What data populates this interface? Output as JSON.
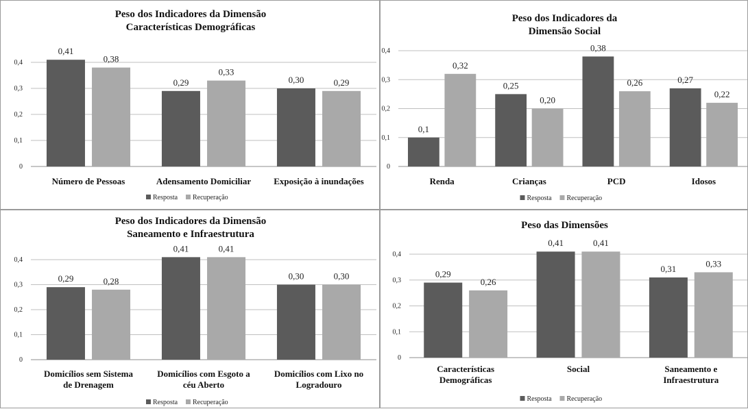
{
  "colors": {
    "resposta": "#5b5b5b",
    "recuperacao": "#a9a9a9"
  },
  "chart_data": [
    {
      "type": "bar",
      "title": [
        "Peso dos Indicadores da Dimensão",
        "Características Demográficas"
      ],
      "categories": [
        [
          "Número de Pessoas"
        ],
        [
          "Adensamento Domiciliar"
        ],
        [
          "Exposição à inundações"
        ]
      ],
      "series": [
        {
          "name": "Resposta",
          "values": [
            0.41,
            0.29,
            0.3
          ],
          "labels": [
            "0,41",
            "0,29",
            "0,30"
          ]
        },
        {
          "name": "Recuperação",
          "values": [
            0.38,
            0.33,
            0.29
          ],
          "labels": [
            "0,38",
            "0,33",
            "0,29"
          ]
        }
      ],
      "ylim": [
        0,
        0.4
      ],
      "yticks": [
        "0",
        "0,1",
        "0,2",
        "0,3",
        "0,4"
      ],
      "grid": true,
      "legend": "bottom"
    },
    {
      "type": "bar",
      "title": [
        "Peso dos Indicadores da",
        "Dimensão Social"
      ],
      "categories": [
        [
          "Renda"
        ],
        [
          "Crianças"
        ],
        [
          "PCD"
        ],
        [
          "Idosos"
        ]
      ],
      "series": [
        {
          "name": "Resposta",
          "values": [
            0.1,
            0.25,
            0.38,
            0.27
          ],
          "labels": [
            "0,1",
            "0,25",
            "0,38",
            "0,27"
          ]
        },
        {
          "name": "Recuperação",
          "values": [
            0.32,
            0.2,
            0.26,
            0.22
          ],
          "labels": [
            "0,32",
            "0,20",
            "0,26",
            "0,22"
          ]
        }
      ],
      "ylim": [
        0,
        0.4
      ],
      "yticks": [
        "0",
        "0,1",
        "0,2",
        "0,3",
        "0,4"
      ],
      "grid": true,
      "legend": "bottom"
    },
    {
      "type": "bar",
      "title": [
        "Peso dos Indicadores da Dimensão",
        "Saneamento e Infraestrutura"
      ],
      "categories": [
        [
          "Domicílios sem Sistema",
          "de Drenagem"
        ],
        [
          "Domicílios com Esgoto a",
          "céu Aberto"
        ],
        [
          "Domicílios com Lixo no",
          "Logradouro"
        ]
      ],
      "series": [
        {
          "name": "Resposta",
          "values": [
            0.29,
            0.41,
            0.3
          ],
          "labels": [
            "0,29",
            "0,41",
            "0,30"
          ]
        },
        {
          "name": "Recuperação",
          "values": [
            0.28,
            0.41,
            0.3
          ],
          "labels": [
            "0,28",
            "0,41",
            "0,30"
          ]
        }
      ],
      "ylim": [
        0,
        0.4
      ],
      "yticks": [
        "0",
        "0,1",
        "0,2",
        "0,3",
        "0,4"
      ],
      "grid": true,
      "legend": "bottom"
    },
    {
      "type": "bar",
      "title": [
        "Peso das Dimensões"
      ],
      "categories": [
        [
          "Características",
          "Demográficas"
        ],
        [
          "Social"
        ],
        [
          "Saneamento e",
          "Infraestrutura"
        ]
      ],
      "series": [
        {
          "name": "Resposta",
          "values": [
            0.29,
            0.41,
            0.31
          ],
          "labels": [
            "0,29",
            "0,41",
            "0,31"
          ]
        },
        {
          "name": "Recuperação",
          "values": [
            0.26,
            0.41,
            0.33
          ],
          "labels": [
            "0,26",
            "0,41",
            "0,33"
          ]
        }
      ],
      "ylim": [
        0,
        0.4
      ],
      "yticks": [
        "0",
        "0,1",
        "0,2",
        "0,3",
        "0,4"
      ],
      "grid": true,
      "legend": "bottom"
    }
  ]
}
